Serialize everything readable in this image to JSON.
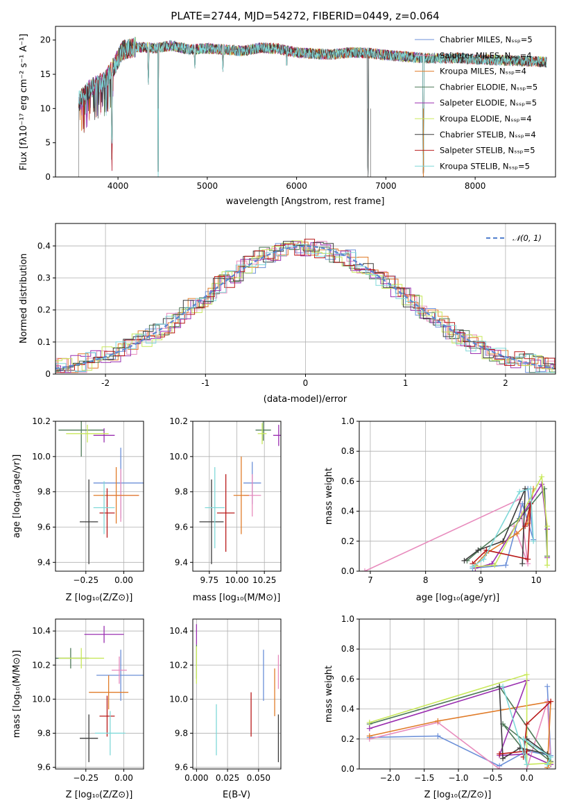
{
  "chart_data": [
    {
      "id": "spectrum",
      "type": "line",
      "title": "PLATE=2744, MJD=54272, FIBERID=0449, z=0.064",
      "xlabel": "wavelength [Angstrom, rest frame]",
      "ylabel": "Flux [fλ10⁻¹⁷ erg cm⁻² s⁻¹ A⁻¹]",
      "xlim": [
        3300,
        8900
      ],
      "ylim": [
        0,
        22
      ],
      "xticks": [
        4000,
        5000,
        6000,
        7000,
        8000
      ],
      "yticks": [
        0,
        5,
        10,
        15,
        20
      ],
      "grid": false,
      "legend_position": "top-right",
      "series": [
        {
          "name": "Chabrier MILES, Nₛₛₚ=5",
          "color": "#6b8fd8"
        },
        {
          "name": "Salpeter MILES, Nₛₛₚ=4",
          "color": "#e88bbd"
        },
        {
          "name": "Kroupa MILES, Nₛₛₚ=4",
          "color": "#e07b28"
        },
        {
          "name": "Chabrier ELODIE, Nₛₛₚ=5",
          "color": "#4e7a58"
        },
        {
          "name": "Salpeter ELODIE, Nₛₛₚ=5",
          "color": "#9a2fb0"
        },
        {
          "name": "Kroupa ELODIE, Nₛₛₚ=4",
          "color": "#c8e85a"
        },
        {
          "name": "Chabrier STELIB, Nₛₛₚ=4",
          "color": "#3a3a3a"
        },
        {
          "name": "Salpeter STELIB, Nₛₛₚ=5",
          "color": "#b81818"
        },
        {
          "name": "Kroupa STELIB, Nₛₛₚ=5",
          "color": "#7fd8d8"
        }
      ],
      "continuum": {
        "x": [
          3560,
          3700,
          3850,
          3950,
          4050,
          4200,
          4400,
          4600,
          4800,
          5000,
          5200,
          5400,
          5600,
          5800,
          6000,
          6200,
          6400,
          6600,
          6800,
          7000,
          7200,
          7400,
          7600,
          7800,
          8000,
          8200,
          8400,
          8600,
          8800
        ],
        "y": [
          11.0,
          13.0,
          14.0,
          16.0,
          18.5,
          19.0,
          18.8,
          19.2,
          18.6,
          18.8,
          18.6,
          18.4,
          18.9,
          18.7,
          18.2,
          18.0,
          17.9,
          18.2,
          18.1,
          17.8,
          17.6,
          17.4,
          17.3,
          17.4,
          17.2,
          17.1,
          17.0,
          16.9,
          16.8
        ]
      },
      "absorption_dips": [
        {
          "x": 3933,
          "y": 4.5
        },
        {
          "x": 4340,
          "y": 13.5
        },
        {
          "x": 4450,
          "y": 0
        },
        {
          "x": 4861,
          "y": 15.5
        },
        {
          "x": 5175,
          "y": 15.0
        },
        {
          "x": 5890,
          "y": 15.5
        },
        {
          "x": 6800,
          "y": 0
        },
        {
          "x": 7420,
          "y": 0
        }
      ]
    },
    {
      "id": "residuals",
      "type": "histogram",
      "xlabel": "(data-model)/error",
      "ylabel": "Normed distribution",
      "xlim": [
        -2.5,
        2.5
      ],
      "ylim": [
        0,
        0.47
      ],
      "xticks": [
        -2,
        -1,
        0,
        1,
        2
      ],
      "yticks": [
        0.0,
        0.1,
        0.2,
        0.3,
        0.4
      ],
      "grid": true,
      "legend": [
        "𝒩(0, 1)"
      ],
      "legend_position": "top-right",
      "bin_width": 0.1,
      "reference_curve": {
        "name": "𝒩(0, 1)",
        "mean": 0,
        "sigma": 1,
        "color": "#5b86d0"
      }
    },
    {
      "id": "age-vs-Z",
      "type": "scatter",
      "xlabel": "Z [log₁₀(Z/Z⊙)]",
      "ylabel": "age  [log₁₀(age/yr)]",
      "xlim": [
        -0.45,
        0.13
      ],
      "ylim": [
        9.35,
        10.2
      ],
      "xticks": [
        -0.25,
        0.0
      ],
      "xticklabels": [
        "−0.25",
        "0.00"
      ],
      "yticks": [
        9.4,
        9.6,
        9.8,
        10.0,
        10.2
      ],
      "yticklabels": [
        "9.4",
        "9.6",
        "9.8",
        "10.0",
        "10.2"
      ],
      "grid": true,
      "points": [
        {
          "x": -0.02,
          "y": 9.85,
          "xerr": 0.18,
          "yerr": 0.2,
          "color": "#6b8fd8"
        },
        {
          "x": -0.02,
          "y": 9.78,
          "xerr": 0.12,
          "yerr": 0.15,
          "color": "#e88bbd"
        },
        {
          "x": -0.05,
          "y": 9.78,
          "xerr": 0.15,
          "yerr": 0.16,
          "color": "#e07b28"
        },
        {
          "x": -0.28,
          "y": 10.15,
          "xerr": 0.15,
          "yerr": 0.15,
          "color": "#4e7a58"
        },
        {
          "x": -0.13,
          "y": 10.12,
          "xerr": 0.07,
          "yerr": 0.04,
          "color": "#9a2fb0"
        },
        {
          "x": -0.24,
          "y": 10.13,
          "xerr": 0.14,
          "yerr": 0.05,
          "color": "#c8e85a"
        },
        {
          "x": -0.23,
          "y": 9.63,
          "xerr": 0.06,
          "yerr": 0.24,
          "color": "#3a3a3a"
        },
        {
          "x": -0.11,
          "y": 9.68,
          "xerr": 0.05,
          "yerr": 0.14,
          "color": "#b81818"
        },
        {
          "x": -0.13,
          "y": 9.71,
          "xerr": 0.07,
          "yerr": 0.15,
          "color": "#7fd8d8"
        }
      ]
    },
    {
      "id": "age-vs-mass",
      "type": "scatter",
      "xlabel": "mass [log₁₀(M/M⊙)]",
      "ylabel": "",
      "xlim": [
        9.6,
        10.4
      ],
      "ylim": [
        9.35,
        10.2
      ],
      "xticks": [
        9.75,
        10.0,
        10.25
      ],
      "xticklabels": [
        "9.75",
        "10.00",
        "10.25"
      ],
      "yticks": [
        9.4,
        9.6,
        9.8,
        10.0,
        10.2
      ],
      "yticklabels": [
        "9.4",
        "9.6",
        "9.8",
        "10.0",
        "10.2"
      ],
      "grid": true,
      "points": [
        {
          "x": 10.14,
          "y": 9.85,
          "xerr": 0.08,
          "yerr": 0.12,
          "color": "#6b8fd8"
        },
        {
          "x": 10.14,
          "y": 9.78,
          "xerr": 0.08,
          "yerr": 0.12,
          "color": "#e88bbd"
        },
        {
          "x": 10.04,
          "y": 9.78,
          "xerr": 0.07,
          "yerr": 0.22,
          "color": "#e07b28"
        },
        {
          "x": 10.24,
          "y": 10.15,
          "xerr": 0.07,
          "yerr": 0.06,
          "color": "#4e7a58"
        },
        {
          "x": 10.38,
          "y": 10.12,
          "xerr": 0.05,
          "yerr": 0.06,
          "color": "#9a2fb0"
        },
        {
          "x": 10.23,
          "y": 10.13,
          "xerr": 0.04,
          "yerr": 0.06,
          "color": "#c8e85a"
        },
        {
          "x": 9.77,
          "y": 9.63,
          "xerr": 0.11,
          "yerr": 0.24,
          "color": "#3a3a3a"
        },
        {
          "x": 9.9,
          "y": 9.68,
          "xerr": 0.08,
          "yerr": 0.22,
          "color": "#b81818"
        },
        {
          "x": 9.8,
          "y": 9.71,
          "xerr": 0.09,
          "yerr": 0.23,
          "color": "#7fd8d8"
        }
      ]
    },
    {
      "id": "weight-vs-age",
      "type": "line",
      "xlabel": "age  [log₁₀(age/yr)]",
      "ylabel": "mass weight",
      "xlim": [
        6.8,
        10.35
      ],
      "ylim": [
        0,
        1
      ],
      "xticks": [
        7,
        8,
        9,
        10
      ],
      "xticklabels": [
        "7",
        "8",
        "9",
        "10"
      ],
      "yticks": [
        0,
        0.2,
        0.4,
        0.6,
        0.8,
        1.0
      ],
      "yticklabels": [
        "0.0",
        "0.2",
        "0.4",
        "0.6",
        "0.8",
        "1.0"
      ],
      "grid": true,
      "series": [
        {
          "color": "#e88bbd",
          "x": [
            6.9,
            9.7,
            9.85,
            9.6
          ],
          "y": [
            0.0,
            0.48,
            0.05,
            0.3
          ]
        },
        {
          "color": "#6b8fd8",
          "x": [
            8.85,
            9.45,
            9.75,
            9.95,
            9.85
          ],
          "y": [
            0.02,
            0.04,
            0.45,
            0.21,
            0.55
          ]
        },
        {
          "color": "#e07b28",
          "x": [
            8.9,
            9.1,
            9.65,
            9.85,
            9.95
          ],
          "y": [
            0.04,
            0.12,
            0.25,
            0.32,
            0.55
          ]
        },
        {
          "color": "#4e7a58",
          "x": [
            8.75,
            9.0,
            9.7,
            10.15,
            10.2
          ],
          "y": [
            0.07,
            0.15,
            0.35,
            0.55,
            0.1
          ]
        },
        {
          "color": "#9a2fb0",
          "x": [
            8.9,
            9.2,
            10.1,
            10.2,
            10.2
          ],
          "y": [
            0.02,
            0.05,
            0.58,
            0.28,
            0.09
          ]
        },
        {
          "color": "#c8e85a",
          "x": [
            8.9,
            9.25,
            10.1,
            10.2,
            10.2
          ],
          "y": [
            0.03,
            0.04,
            0.63,
            0.3,
            0.04
          ]
        },
        {
          "color": "#3a3a3a",
          "x": [
            8.7,
            8.95,
            9.4,
            9.8,
            9.75
          ],
          "y": [
            0.07,
            0.14,
            0.2,
            0.55,
            0.05
          ]
        },
        {
          "color": "#b81818",
          "x": [
            8.85,
            9.1,
            9.85,
            9.9,
            9.8
          ],
          "y": [
            0.05,
            0.14,
            0.08,
            0.45,
            0.3
          ]
        },
        {
          "color": "#7fd8d8",
          "x": [
            8.85,
            9.05,
            9.7,
            9.9,
            9.95
          ],
          "y": [
            0.03,
            0.08,
            0.53,
            0.55,
            0.2
          ]
        }
      ]
    },
    {
      "id": "mass-vs-Z",
      "type": "scatter",
      "xlabel": "Z [log₁₀(Z/Z⊙)]",
      "ylabel": "mass [log₁₀(M/M⊙)]",
      "xlim": [
        -0.45,
        0.13
      ],
      "ylim": [
        9.59,
        10.47
      ],
      "xticks": [
        -0.25,
        0.0
      ],
      "xticklabels": [
        "−0.25",
        "0.00"
      ],
      "yticks": [
        9.6,
        9.8,
        10.0,
        10.2,
        10.4
      ],
      "yticklabels": [
        "9.6",
        "9.8",
        "10.0",
        "10.2",
        "10.4"
      ],
      "grid": true,
      "points": [
        {
          "x": -0.02,
          "y": 10.14,
          "xerr": 0.16,
          "yerr": 0.15,
          "color": "#6b8fd8"
        },
        {
          "x": -0.03,
          "y": 10.17,
          "xerr": 0.05,
          "yerr": 0.08,
          "color": "#e88bbd"
        },
        {
          "x": -0.1,
          "y": 10.04,
          "xerr": 0.13,
          "yerr": 0.1,
          "color": "#e07b28"
        },
        {
          "x": -0.35,
          "y": 10.24,
          "xerr": 0.12,
          "yerr": 0.06,
          "color": "#4e7a58"
        },
        {
          "x": -0.13,
          "y": 10.38,
          "xerr": 0.13,
          "yerr": 0.05,
          "color": "#9a2fb0"
        },
        {
          "x": -0.28,
          "y": 10.24,
          "xerr": 0.15,
          "yerr": 0.06,
          "color": "#c8e85a"
        },
        {
          "x": -0.23,
          "y": 9.77,
          "xerr": 0.06,
          "yerr": 0.14,
          "color": "#3a3a3a"
        },
        {
          "x": -0.11,
          "y": 9.9,
          "xerr": 0.05,
          "yerr": 0.12,
          "color": "#b81818"
        },
        {
          "x": -0.09,
          "y": 9.8,
          "xerr": 0.1,
          "yerr": 0.13,
          "color": "#7fd8d8"
        }
      ]
    },
    {
      "id": "mass-vs-EBV",
      "type": "scatter",
      "xlabel": "E(B-V)",
      "ylabel": "",
      "xlim": [
        -0.003,
        0.068
      ],
      "ylim": [
        9.59,
        10.47
      ],
      "xticks": [
        0.0,
        0.025,
        0.05
      ],
      "xticklabels": [
        "0.000",
        "0.025",
        "0.050"
      ],
      "yticks": [
        9.6,
        9.8,
        10.0,
        10.2,
        10.4
      ],
      "yticklabels": [
        "9.6",
        "9.8",
        "10.0",
        "10.2",
        "10.4"
      ],
      "grid": true,
      "points": [
        {
          "x": 0.054,
          "y": 10.14,
          "xerr": 0,
          "yerr": 0.15,
          "color": "#6b8fd8"
        },
        {
          "x": 0.066,
          "y": 10.16,
          "xerr": 0,
          "yerr": 0.1,
          "color": "#e88bbd"
        },
        {
          "x": 0.063,
          "y": 10.04,
          "xerr": 0,
          "yerr": 0.14,
          "color": "#e07b28"
        },
        {
          "x": 0.0,
          "y": 10.22,
          "xerr": 0,
          "yerr": 0.1,
          "color": "#4e7a58"
        },
        {
          "x": 0.0,
          "y": 10.38,
          "xerr": 0,
          "yerr": 0.06,
          "color": "#9a2fb0"
        },
        {
          "x": 0.0,
          "y": 10.2,
          "xerr": 0,
          "yerr": 0.11,
          "color": "#c8e85a"
        },
        {
          "x": 0.066,
          "y": 9.77,
          "xerr": 0,
          "yerr": 0.14,
          "color": "#3a3a3a"
        },
        {
          "x": 0.044,
          "y": 9.91,
          "xerr": 0,
          "yerr": 0.13,
          "color": "#b81818"
        },
        {
          "x": 0.016,
          "y": 9.82,
          "xerr": 0,
          "yerr": 0.15,
          "color": "#7fd8d8"
        }
      ]
    },
    {
      "id": "weight-vs-Z",
      "type": "line",
      "xlabel": "Z [log₁₀(Z/Z⊙)]",
      "ylabel": "mass weight",
      "xlim": [
        -2.45,
        0.42
      ],
      "ylim": [
        0,
        1
      ],
      "xticks": [
        -2.0,
        -1.5,
        -1.0,
        -0.5,
        0.0
      ],
      "xticklabels": [
        "−2.0",
        "−1.5",
        "−1.0",
        "−0.5",
        "0.0"
      ],
      "yticks": [
        0,
        0.2,
        0.4,
        0.6,
        0.8,
        1.0
      ],
      "yticklabels": [
        "0.0",
        "0.2",
        "0.4",
        "0.6",
        "0.8",
        "1.0"
      ],
      "grid": true,
      "series": [
        {
          "color": "#6b8fd8",
          "x": [
            -2.3,
            -1.3,
            -0.4,
            0.0,
            0.35,
            0.3
          ],
          "y": [
            0.21,
            0.22,
            0.02,
            0.12,
            0.09,
            0.55
          ]
        },
        {
          "color": "#e88bbd",
          "x": [
            -2.3,
            -1.3,
            -0.4,
            0.0,
            0.3,
            0.35
          ],
          "y": [
            0.2,
            0.31,
            0.0,
            0.0,
            0.45,
            0.05
          ]
        },
        {
          "color": "#e07b28",
          "x": [
            -2.3,
            -1.3,
            0.35,
            0.3,
            0.35
          ],
          "y": [
            0.22,
            0.32,
            0.45,
            0.01,
            0.04
          ]
        },
        {
          "color": "#4e7a58",
          "x": [
            -2.3,
            -0.4,
            0.35,
            -0.35,
            0.0
          ],
          "y": [
            0.3,
            0.55,
            0.05,
            0.3,
            0.1
          ]
        },
        {
          "color": "#9a2fb0",
          "x": [
            -2.3,
            0.0,
            -0.4,
            0.0,
            0.35
          ],
          "y": [
            0.27,
            0.59,
            0.09,
            0.1,
            0.03
          ]
        },
        {
          "color": "#c8e85a",
          "x": [
            -2.3,
            0.0,
            0.0,
            0.35,
            0.3
          ],
          "y": [
            0.31,
            0.63,
            0.03,
            0.04,
            0.03
          ]
        },
        {
          "color": "#3a3a3a",
          "x": [
            -0.4,
            -0.35,
            -0.1,
            0.3,
            0.0
          ],
          "y": [
            0.55,
            0.07,
            0.14,
            0.1,
            0.2
          ]
        },
        {
          "color": "#b81818",
          "x": [
            -0.4,
            0.0,
            -0.05,
            0.0,
            0.35
          ],
          "y": [
            0.1,
            0.12,
            0.08,
            0.3,
            0.45
          ]
        },
        {
          "color": "#7fd8d8",
          "x": [
            -0.35,
            0.0,
            -0.05,
            0.35,
            0.3
          ],
          "y": [
            0.55,
            0.03,
            0.2,
            0.08,
            0.03
          ]
        }
      ]
    }
  ]
}
